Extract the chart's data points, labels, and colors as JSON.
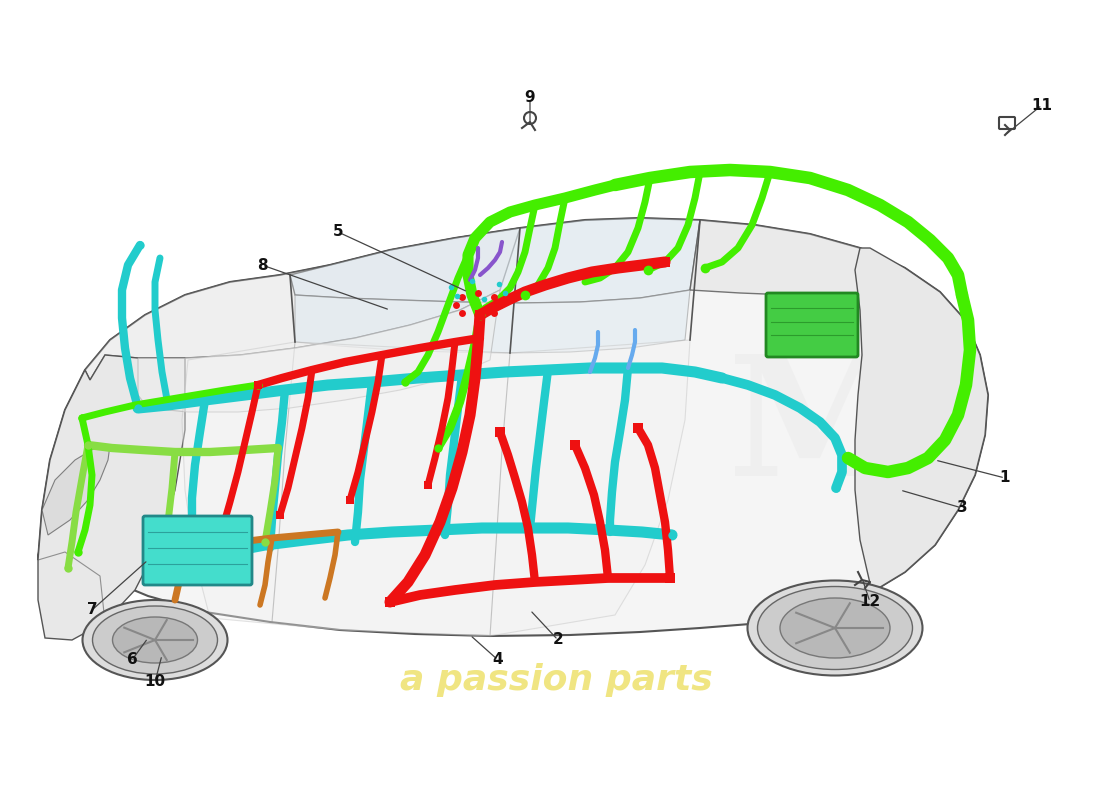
{
  "background_color": "#ffffff",
  "watermark_text": "a passion parts",
  "watermark_color": "#e8d840",
  "wire_colors": {
    "green": "#44ee00",
    "red": "#ee1111",
    "cyan": "#22cccc",
    "lime": "#88dd44",
    "orange": "#cc7722",
    "teal_box": "#44ddcc",
    "green_box": "#44cc44",
    "purple": "#8855cc",
    "blue_light": "#66aaee"
  },
  "car_outline": "#555555",
  "car_fill": "#f5f5f5",
  "car_glass": "#dde8f0",
  "label_font_size": 11,
  "label_color": "#111111",
  "leader_color": "#444444"
}
